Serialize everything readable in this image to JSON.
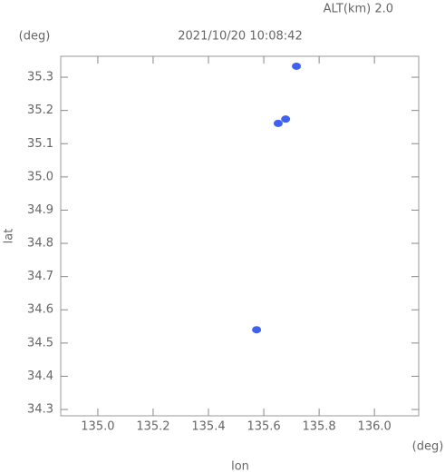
{
  "chart_data": {
    "type": "scatter",
    "title": "2021/10/20 10:08:42",
    "altitude": "ALT(km) 2.0",
    "x_unit": "(deg)",
    "y_unit": "(deg)",
    "x_label": "lon",
    "y_label": "lat",
    "color": "#4060f0",
    "x": [
      135.718,
      135.679,
      135.652,
      135.574
    ],
    "values": [
      35.333,
      35.174,
      35.161,
      34.54
    ],
    "xlim": [
      134.866,
      136.16
    ],
    "ylim": [
      34.281,
      35.363
    ],
    "xticks": [
      {
        "value": 135.0,
        "label": "135.0"
      },
      135.2,
      135.4,
      135.6,
      135.8,
      {
        "value": 136.0,
        "label": "136.0"
      }
    ],
    "yticks": [
      34.3,
      34.4,
      34.5,
      34.6,
      34.7,
      34.8,
      34.9,
      {
        "value": 35.0,
        "label": "35.0"
      },
      35.1,
      35.2,
      35.3
    ]
  }
}
